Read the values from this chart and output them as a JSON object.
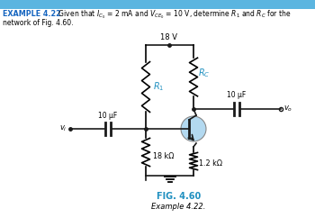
{
  "title_prefix": "EXAMPLE 4.22",
  "title_prefix_color": "#1565C0",
  "header_bar_color": "#5BB5E0",
  "vcc_label": "18 V",
  "r1_label": "$R_1$",
  "rc_label": "$R_C$",
  "r18k_label": "18 kΩ",
  "r12k_label": "1.2 kΩ",
  "cap_in_label": "10 μF",
  "cap_out_label": "10 μF",
  "vi_label": "$v_i$",
  "vo_label": "$v_o$",
  "fig_label": "FIG. 4.60",
  "fig_caption": "Example 4.22.",
  "highlight_color": "#B3D9F0",
  "cyan_color": "#2090C0",
  "wire_color": "#1A1A1A",
  "header_text": "   Given that $I_{C_0}$ = 2 mA and $V_{CE_0}$ = 10 V, determine $R_1$ and $R_C$ for the",
  "line2_text": "network of Fig. 4.60."
}
